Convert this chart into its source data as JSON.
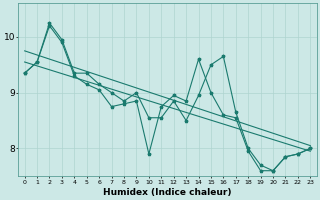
{
  "background_color": "#cce8e6",
  "line_color": "#1a7a6e",
  "grid_color": "#afd4d0",
  "xlabel": "Humidex (Indice chaleur)",
  "xlim": [
    -0.5,
    23.5
  ],
  "ylim": [
    7.5,
    10.6
  ],
  "yticks": [
    8,
    9,
    10
  ],
  "xticks": [
    0,
    1,
    2,
    3,
    4,
    5,
    6,
    7,
    8,
    9,
    10,
    11,
    12,
    13,
    14,
    15,
    16,
    17,
    18,
    19,
    20,
    21,
    22,
    23
  ],
  "line1_jagged": {
    "x": [
      0,
      1,
      2,
      3,
      4,
      5,
      6,
      7,
      8,
      9,
      10,
      11,
      12,
      13,
      14,
      15,
      16,
      17,
      18,
      19,
      20,
      21,
      22,
      23
    ],
    "y": [
      9.35,
      9.55,
      10.25,
      9.95,
      9.35,
      9.35,
      9.15,
      9.0,
      8.85,
      9.0,
      8.55,
      8.55,
      8.85,
      8.5,
      8.95,
      9.5,
      9.65,
      8.65,
      8.0,
      7.7,
      7.6,
      7.85,
      7.9,
      8.0
    ]
  },
  "line2_jagged": {
    "x": [
      0,
      1,
      2,
      3,
      4,
      5,
      6,
      7,
      8,
      9,
      10,
      11,
      12,
      13,
      14,
      15,
      16,
      17,
      18,
      19,
      20,
      21,
      22,
      23
    ],
    "y": [
      9.35,
      9.55,
      10.2,
      9.9,
      9.3,
      9.15,
      9.05,
      8.75,
      8.8,
      8.85,
      7.9,
      8.75,
      8.95,
      8.85,
      9.6,
      9.0,
      8.6,
      8.55,
      7.95,
      7.6,
      7.6,
      7.85,
      7.9,
      8.0
    ]
  },
  "line3_straight": {
    "x": [
      0,
      23
    ],
    "y": [
      9.55,
      7.95
    ]
  },
  "line4_straight": {
    "x": [
      0,
      23
    ],
    "y": [
      9.75,
      8.05
    ]
  }
}
